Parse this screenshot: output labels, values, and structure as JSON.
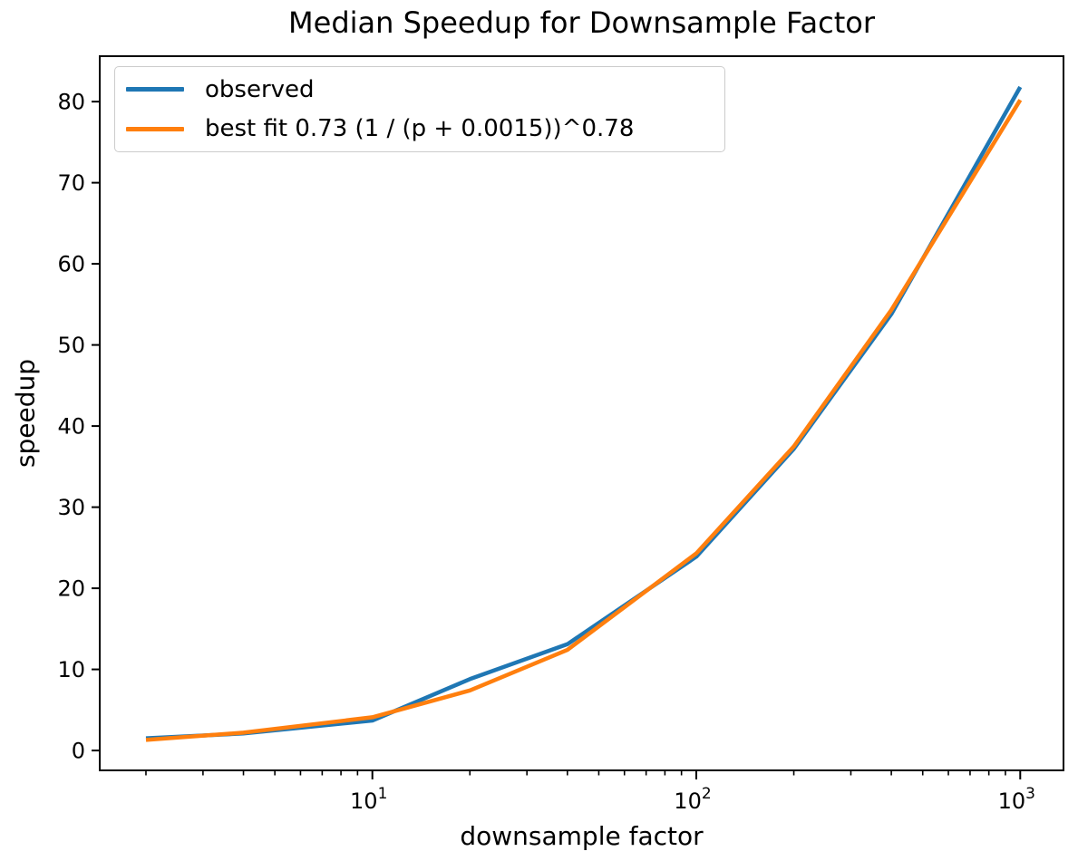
{
  "figure": {
    "background_color": "#ffffff",
    "text_color": "#000000",
    "axis_color": "#000000"
  },
  "chart_data": {
    "type": "line",
    "title": "Median Speedup for Downsample Factor",
    "xlabel": "downsample factor",
    "ylabel": "speedup",
    "x_scale": "log",
    "grid": false,
    "legend_position": "upper left",
    "x": [
      2,
      4,
      10,
      20,
      40,
      100,
      200,
      400,
      1000
    ],
    "series": [
      {
        "name": "observed",
        "color": "#1f77b4",
        "values": [
          1.5,
          2.1,
          3.7,
          8.8,
          13.1,
          23.9,
          37.2,
          53.8,
          81.8
        ]
      },
      {
        "name": "best fit 0.73 (1 / (p + 0.0015))^0.78",
        "color": "#ff7f0e",
        "values": [
          1.3,
          2.2,
          4.1,
          7.4,
          12.4,
          24.3,
          37.5,
          54.3,
          80.2
        ]
      }
    ],
    "x_ticks": [
      {
        "value": 10,
        "base": "10",
        "exp": "1"
      },
      {
        "value": 100,
        "base": "10",
        "exp": "2"
      },
      {
        "value": 1000,
        "base": "10",
        "exp": "3"
      }
    ],
    "y_ticks": [
      0,
      10,
      20,
      30,
      40,
      50,
      60,
      70,
      80
    ],
    "x_range": [
      1.44,
      1360
    ],
    "y_range": [
      -2.45,
      85.6
    ]
  }
}
